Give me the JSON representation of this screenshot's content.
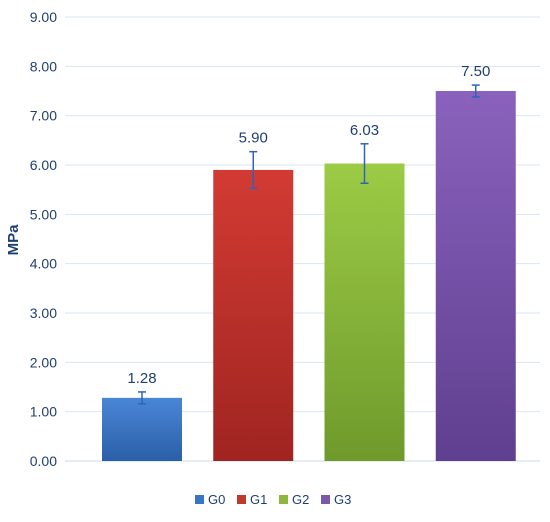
{
  "chart_data": {
    "type": "bar",
    "categories": [
      "G0",
      "G1",
      "G2",
      "G3"
    ],
    "values": [
      1.28,
      5.9,
      6.03,
      7.5
    ],
    "value_labels": [
      "1.28",
      "5.90",
      "6.03",
      "7.50"
    ],
    "error": [
      0.12,
      0.37,
      0.4,
      0.12
    ],
    "colors": [
      "#3a75c4",
      "#c0392b",
      "#8db83d",
      "#7b58a8"
    ],
    "title": "",
    "xlabel": "",
    "ylabel": "MPa",
    "ylim": [
      0,
      9
    ],
    "yticks": [
      "0.00",
      "1.00",
      "2.00",
      "3.00",
      "4.00",
      "5.00",
      "6.00",
      "7.00",
      "8.00",
      "9.00"
    ],
    "grid": true,
    "legend": {
      "placement": "bottom-center",
      "entries": [
        "G0",
        "G1",
        "G2",
        "G3"
      ]
    }
  }
}
